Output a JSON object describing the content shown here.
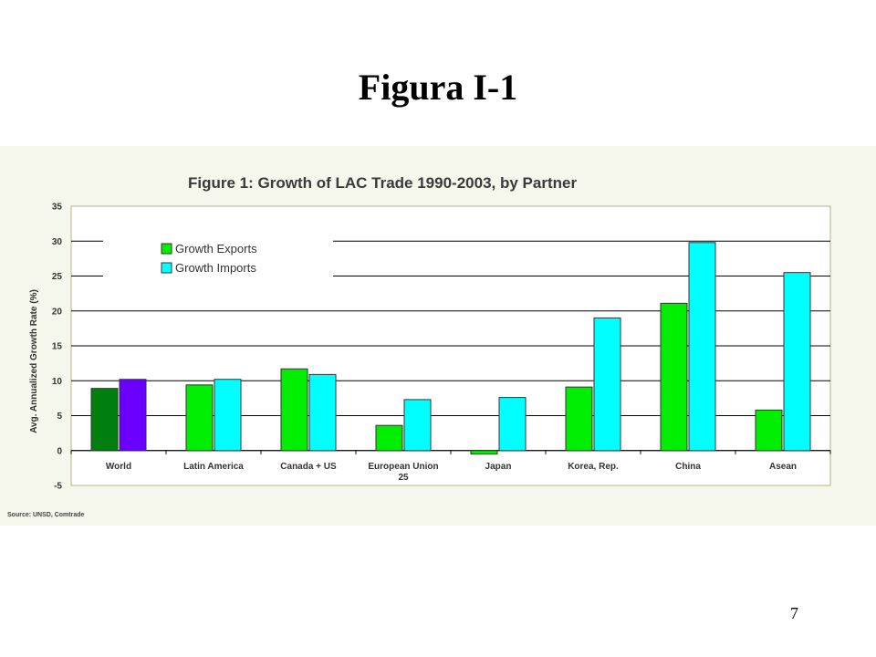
{
  "slide": {
    "title": "Figura I-1",
    "page_number": "7"
  },
  "colors": {
    "exports": "#00ee00",
    "imports": "#00ffff",
    "world_exports": "#007f0e",
    "world_imports": "#6a00ff",
    "panel_bg": "#f5f7ec",
    "plot_bg": "#ffffff",
    "border": "#b7b08a"
  },
  "chart_data": {
    "type": "bar",
    "title": "Figure 1: Growth of LAC Trade 1990-2003, by Partner",
    "ylabel": "Avg. Annualized Growth Rate (%)",
    "xlabel": "",
    "categories": [
      "World",
      "Latin America",
      "Canada + US",
      "European Union 25",
      "Japan",
      "Korea, Rep.",
      "China",
      "Asean"
    ],
    "category_lines": [
      [
        "World"
      ],
      [
        "Latin America"
      ],
      [
        "Canada + US"
      ],
      [
        "European Union",
        "25"
      ],
      [
        "Japan"
      ],
      [
        "Korea, Rep."
      ],
      [
        "China"
      ],
      [
        "Asean"
      ]
    ],
    "series": [
      {
        "name": "Growth Exports",
        "values": [
          8.9,
          9.4,
          11.7,
          3.6,
          -0.5,
          9.1,
          21.1,
          5.8
        ]
      },
      {
        "name": "Growth Imports",
        "values": [
          10.2,
          10.2,
          10.9,
          7.3,
          7.6,
          19.0,
          29.8,
          25.5
        ]
      }
    ],
    "ylim": [
      -5,
      35
    ],
    "yticks": [
      -5,
      0,
      5,
      10,
      15,
      20,
      25,
      30,
      35
    ],
    "grid": true,
    "legend": "top-left",
    "source": "Source:  UNSD, Comtrade"
  }
}
